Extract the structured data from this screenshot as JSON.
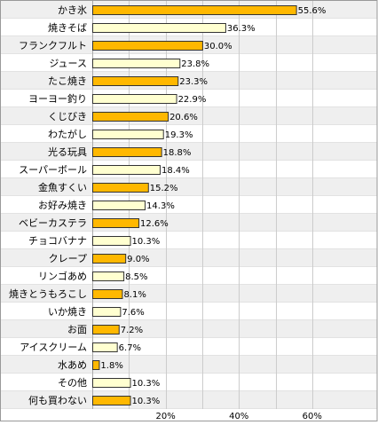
{
  "chart_data": {
    "type": "bar",
    "orientation": "horizontal",
    "categories": [
      "かき氷",
      "焼きそば",
      "フランクフルト",
      "ジュース",
      "たこ焼き",
      "ヨーヨー釣り",
      "くじびき",
      "わたがし",
      "光る玩具",
      "スーパーボール",
      "金魚すくい",
      "お好み焼き",
      "ベビーカステラ",
      "チョコバナナ",
      "クレープ",
      "リンゴあめ",
      "焼きとうもろこし",
      "いか焼き",
      "お面",
      "アイスクリーム",
      "水あめ",
      "その他",
      "何も買わない"
    ],
    "values": [
      55.6,
      36.3,
      30.0,
      23.8,
      23.3,
      22.9,
      20.6,
      19.3,
      18.8,
      18.4,
      15.2,
      14.3,
      12.6,
      10.3,
      9.0,
      8.5,
      8.1,
      7.6,
      7.2,
      6.7,
      1.8,
      10.3,
      10.3
    ],
    "value_labels": [
      "55.6%",
      "36.3%",
      "30.0%",
      "23.8%",
      "23.3%",
      "22.9%",
      "20.6%",
      "19.3%",
      "18.8%",
      "18.4%",
      "15.2%",
      "14.3%",
      "12.6%",
      "10.3%",
      "9.0%",
      "8.5%",
      "8.1%",
      "7.6%",
      "7.2%",
      "6.7%",
      "1.8%",
      "10.3%",
      "10.3%"
    ],
    "highlighted": [
      true,
      false,
      true,
      false,
      true,
      false,
      true,
      false,
      true,
      false,
      true,
      false,
      true,
      false,
      true,
      false,
      true,
      false,
      true,
      false,
      true,
      false,
      true
    ],
    "xlim": [
      0,
      69
    ],
    "ticks": [
      20,
      40,
      60
    ],
    "tick_labels": [
      "20%",
      "40%",
      "60%"
    ],
    "grid": true,
    "colors": {
      "highlight": "#FFB800",
      "normal": "#FFFFD0",
      "bar_stroke": "#333333",
      "row_band": "#EFEFEF",
      "grid": "#CCCCCC",
      "frame": "#999999"
    }
  }
}
